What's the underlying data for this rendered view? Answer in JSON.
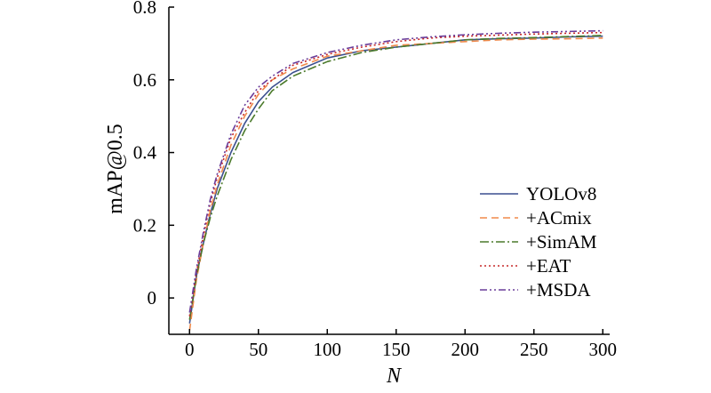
{
  "chart_data": {
    "type": "line",
    "xlabel": "N",
    "ylabel": "mAP@0.5",
    "xlim": [
      -15,
      305
    ],
    "ylim": [
      -0.1,
      0.8
    ],
    "xticks": [
      0,
      50,
      100,
      150,
      200,
      250,
      300
    ],
    "yticks": [
      0,
      0.2,
      0.4,
      0.6,
      0.8
    ],
    "xtick_labels": [
      "0",
      "50",
      "100",
      "150",
      "200",
      "250",
      "300"
    ],
    "ytick_labels": [
      "0",
      "0.2",
      "0.4",
      "0.6",
      "0.8"
    ],
    "grid": false,
    "legend_position": "lower-right",
    "series": [
      {
        "name": "YOLOv8",
        "color": "#3b4f8f",
        "dash": "solid",
        "x": [
          0,
          5,
          10,
          15,
          20,
          30,
          40,
          50,
          60,
          75,
          100,
          125,
          150,
          175,
          200,
          225,
          250,
          275,
          300
        ],
        "y": [
          -0.07,
          0.06,
          0.15,
          0.23,
          0.3,
          0.4,
          0.48,
          0.54,
          0.58,
          0.62,
          0.66,
          0.68,
          0.69,
          0.7,
          0.71,
          0.713,
          0.715,
          0.718,
          0.72
        ]
      },
      {
        "name": "+ACmix",
        "color": "#f08a4b",
        "dash": "8,5",
        "x": [
          0,
          5,
          10,
          15,
          20,
          30,
          40,
          50,
          60,
          75,
          100,
          125,
          150,
          175,
          200,
          225,
          250,
          275,
          300
        ],
        "y": [
          -0.09,
          0.05,
          0.15,
          0.24,
          0.31,
          0.42,
          0.5,
          0.56,
          0.6,
          0.63,
          0.665,
          0.68,
          0.695,
          0.7,
          0.705,
          0.71,
          0.712,
          0.713,
          0.715
        ]
      },
      {
        "name": "+SimAM",
        "color": "#4b7a2b",
        "dash": "10,3,2,3",
        "x": [
          0,
          5,
          10,
          15,
          20,
          30,
          40,
          50,
          60,
          75,
          100,
          125,
          150,
          175,
          200,
          225,
          250,
          275,
          300
        ],
        "y": [
          -0.06,
          0.06,
          0.15,
          0.22,
          0.28,
          0.38,
          0.46,
          0.52,
          0.57,
          0.61,
          0.65,
          0.675,
          0.69,
          0.7,
          0.71,
          0.714,
          0.716,
          0.719,
          0.722
        ]
      },
      {
        "name": "+EAT",
        "color": "#c62828",
        "dash": "2,3",
        "x": [
          0,
          5,
          10,
          15,
          20,
          30,
          40,
          50,
          60,
          75,
          100,
          125,
          150,
          175,
          200,
          225,
          250,
          275,
          300
        ],
        "y": [
          -0.05,
          0.07,
          0.17,
          0.26,
          0.33,
          0.44,
          0.51,
          0.57,
          0.6,
          0.64,
          0.67,
          0.69,
          0.705,
          0.715,
          0.72,
          0.723,
          0.726,
          0.728,
          0.73
        ]
      },
      {
        "name": "+MSDA",
        "color": "#6a3d9a",
        "dash": "8,3,2,3,2,3",
        "x": [
          0,
          5,
          10,
          15,
          20,
          30,
          40,
          50,
          60,
          75,
          100,
          125,
          150,
          175,
          200,
          225,
          250,
          275,
          300
        ],
        "y": [
          -0.04,
          0.08,
          0.18,
          0.27,
          0.34,
          0.45,
          0.53,
          0.58,
          0.61,
          0.645,
          0.675,
          0.695,
          0.71,
          0.718,
          0.724,
          0.728,
          0.731,
          0.733,
          0.735
        ]
      }
    ]
  }
}
